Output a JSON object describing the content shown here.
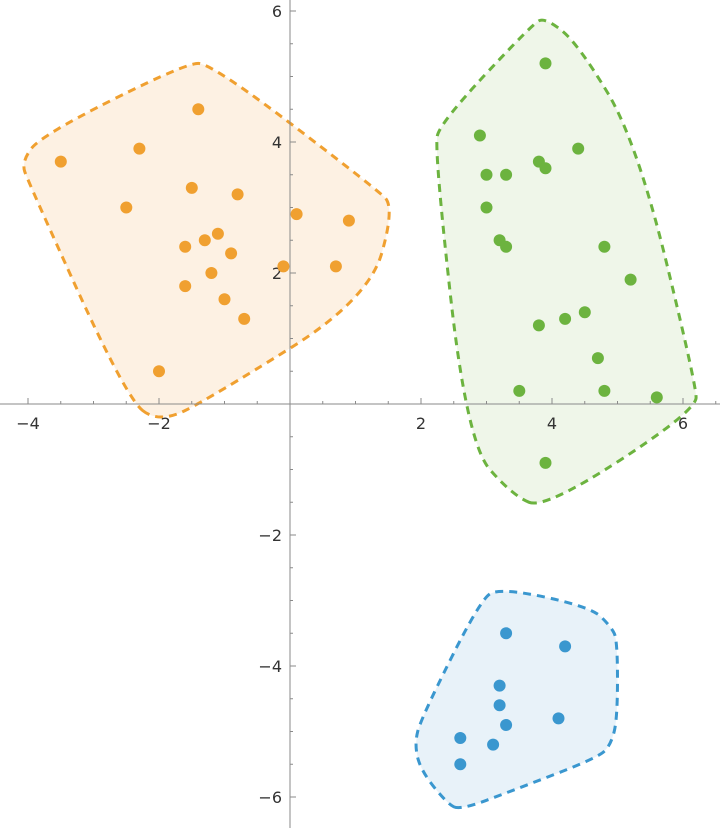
{
  "chart_data": {
    "type": "scatter",
    "title": "",
    "xlabel": "",
    "ylabel": "",
    "xlim": [
      -4.4,
      6.5
    ],
    "ylim": [
      -6.3,
      6.2
    ],
    "x_ticks": [
      -4,
      -2,
      2,
      4,
      6
    ],
    "y_ticks": [
      6,
      4,
      2,
      -2,
      -4,
      -6
    ],
    "x_tick_labels": [
      "−4",
      "−2",
      "2",
      "4",
      "6"
    ],
    "y_tick_labels": [
      "6",
      "4",
      "2",
      "−2",
      "−4",
      "−6"
    ],
    "grid": false,
    "series": [
      {
        "color": "#F0A030",
        "fill": "#FDF1E3",
        "hull": [
          [
            -2.0,
            -0.3
          ],
          [
            -1.2,
            0.1
          ],
          [
            1.2,
            1.6
          ],
          [
            1.6,
            3.0
          ],
          [
            1.3,
            3.3
          ],
          [
            -1.2,
            5.2
          ],
          [
            -1.6,
            5.2
          ],
          [
            -3.8,
            4.1
          ],
          [
            -4.1,
            3.7
          ],
          [
            -4.0,
            3.4
          ],
          [
            -2.5,
            0.1
          ]
        ],
        "x": [
          -3.5,
          -2.3,
          -1.4,
          -2.5,
          -1.5,
          -0.8,
          -1.6,
          -1.3,
          -1.1,
          -0.9,
          -1.2,
          -1.6,
          -1.0,
          -0.7,
          -2.0,
          0.1,
          0.9,
          -0.1,
          0.7
        ],
        "y": [
          3.7,
          3.9,
          4.5,
          3.0,
          3.3,
          3.2,
          2.4,
          2.5,
          2.6,
          2.3,
          2.0,
          1.8,
          1.6,
          1.3,
          0.5,
          2.9,
          2.8,
          2.1,
          2.1
        ]
      },
      {
        "color": "#6CB33F",
        "fill": "#EFF6E9",
        "hull": [
          [
            3.9,
            -1.6
          ],
          [
            6.2,
            -0.1
          ],
          [
            6.2,
            0.3
          ],
          [
            5.3,
            4.0
          ],
          [
            4.4,
            5.5
          ],
          [
            3.9,
            5.9
          ],
          [
            3.7,
            5.8
          ],
          [
            2.3,
            4.3
          ],
          [
            2.2,
            3.9
          ],
          [
            2.7,
            -0.6
          ],
          [
            3.4,
            -1.4
          ]
        ],
        "x": [
          3.9,
          2.9,
          3.0,
          3.3,
          3.8,
          3.9,
          4.4,
          3.0,
          3.2,
          3.3,
          4.8,
          5.2,
          3.8,
          4.2,
          4.5,
          4.7,
          3.5,
          4.8,
          5.6,
          3.9
        ],
        "y": [
          5.2,
          4.1,
          3.5,
          3.5,
          3.7,
          3.6,
          3.9,
          3.0,
          2.5,
          2.4,
          2.4,
          1.9,
          1.2,
          1.3,
          1.4,
          0.7,
          0.2,
          0.2,
          0.1,
          -0.9
        ]
      },
      {
        "color": "#3A97CF",
        "fill": "#E8F2F9",
        "hull": [
          [
            2.6,
            -6.2
          ],
          [
            3.4,
            -5.9
          ],
          [
            4.7,
            -5.4
          ],
          [
            4.9,
            -5.2
          ],
          [
            5.0,
            -4.8
          ],
          [
            5.0,
            -3.6
          ],
          [
            4.9,
            -3.4
          ],
          [
            4.6,
            -3.1
          ],
          [
            3.2,
            -2.8
          ],
          [
            2.9,
            -3.0
          ],
          [
            2.0,
            -4.8
          ],
          [
            1.9,
            -5.2
          ],
          [
            2.0,
            -5.6
          ],
          [
            2.4,
            -6.1
          ]
        ],
        "x": [
          3.3,
          4.2,
          3.2,
          3.2,
          3.3,
          4.1,
          2.6,
          3.1,
          2.6
        ],
        "y": [
          -3.5,
          -3.7,
          -4.3,
          -4.6,
          -4.9,
          -4.8,
          -5.1,
          -5.2,
          -5.5
        ]
      }
    ]
  }
}
